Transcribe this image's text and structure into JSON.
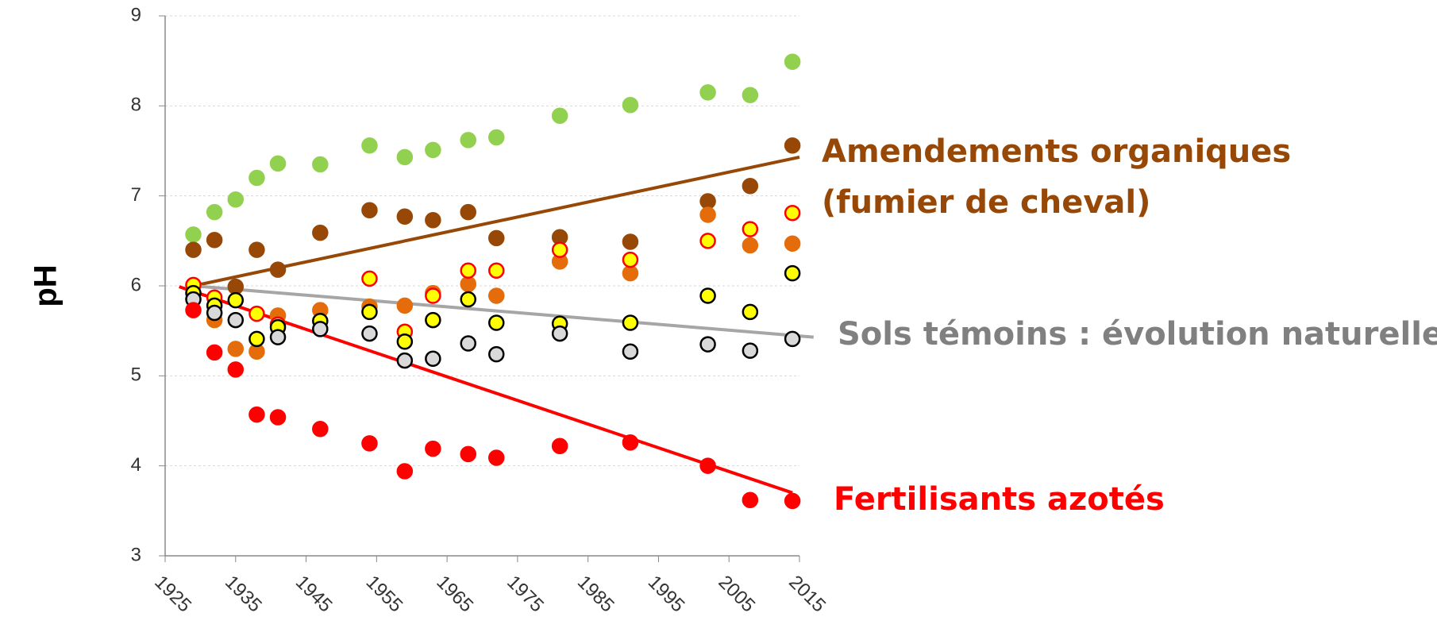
{
  "chart_data": {
    "type": "scatter",
    "y_label": "pH",
    "xlim": [
      1925,
      2015
    ],
    "xticks": [
      1925,
      1935,
      1945,
      1955,
      1965,
      1975,
      1985,
      1995,
      2005,
      2015
    ],
    "ylim": [
      3,
      9
    ],
    "yticks": [
      3,
      4,
      5,
      6,
      7,
      8,
      9
    ],
    "grid": true,
    "x": [
      1929,
      1932,
      1935,
      1938,
      1941,
      1947,
      1954,
      1959,
      1963,
      1968,
      1972,
      1981,
      1991,
      2002,
      2008,
      2014
    ],
    "series": [
      {
        "fill": "#92d050",
        "edge": "#92d050",
        "values": [
          6.57,
          6.82,
          6.96,
          7.2,
          7.36,
          7.35,
          7.56,
          7.43,
          7.51,
          7.62,
          7.65,
          7.89,
          8.01,
          8.15,
          8.12,
          8.49
        ]
      },
      {
        "fill": "#974806",
        "edge": "#974806",
        "values": [
          6.4,
          6.51,
          5.99,
          6.4,
          6.18,
          6.59,
          6.84,
          6.77,
          6.73,
          6.82,
          6.53,
          6.54,
          6.49,
          6.94,
          7.11,
          7.56
        ]
      },
      {
        "fill": "#e46c0a",
        "edge": "#e46c0a",
        "values": [
          5.85,
          5.62,
          5.3,
          5.27,
          5.67,
          5.73,
          5.77,
          5.78,
          5.92,
          6.02,
          5.89,
          6.27,
          6.14,
          6.79,
          6.45,
          6.47
        ]
      },
      {
        "fill": "#ffff00",
        "edge": "#ff0000",
        "values": [
          6.01,
          5.87,
          null,
          5.69,
          5.57,
          null,
          6.08,
          5.49,
          5.89,
          6.17,
          6.17,
          6.4,
          6.29,
          6.5,
          6.63,
          6.81
        ]
      },
      {
        "fill": "#ffff00",
        "edge": "#000000",
        "values": [
          5.92,
          5.78,
          5.84,
          5.41,
          5.54,
          5.61,
          5.71,
          5.38,
          5.62,
          5.85,
          5.59,
          5.58,
          5.59,
          5.89,
          5.71,
          6.14
        ]
      },
      {
        "fill": "#d9d9d9",
        "edge": "#000000",
        "values": [
          5.85,
          5.7,
          5.62,
          null,
          5.43,
          5.52,
          5.47,
          5.17,
          5.19,
          5.36,
          5.24,
          5.47,
          5.27,
          5.35,
          5.28,
          5.41
        ]
      },
      {
        "fill": "#ff0000",
        "edge": "#ff0000",
        "values": [
          5.73,
          5.26,
          5.07,
          4.57,
          4.54,
          4.41,
          4.25,
          3.94,
          4.19,
          4.13,
          4.09,
          4.22,
          4.26,
          4.0,
          3.62,
          3.61
        ]
      }
    ],
    "trend_lines": [
      {
        "color": "#974806",
        "x": [
          1929,
          2015
        ],
        "values": [
          6.0,
          7.43
        ]
      },
      {
        "color": "#a6a6a6",
        "x": [
          1929,
          2017
        ],
        "values": [
          6.0,
          5.43
        ]
      },
      {
        "color": "#ff0000",
        "x": [
          1927,
          2014
        ],
        "values": [
          5.99,
          3.7
        ]
      }
    ],
    "annotations": [
      {
        "color": "#974806",
        "lines": [
          "Amendements organiques",
          "(fumier de cheval)"
        ]
      },
      {
        "color": "#808080",
        "lines": [
          "Sols témoins : évolution naturelle"
        ]
      },
      {
        "color": "#ff0000",
        "lines": [
          "Fertilisants azotés"
        ]
      }
    ]
  }
}
